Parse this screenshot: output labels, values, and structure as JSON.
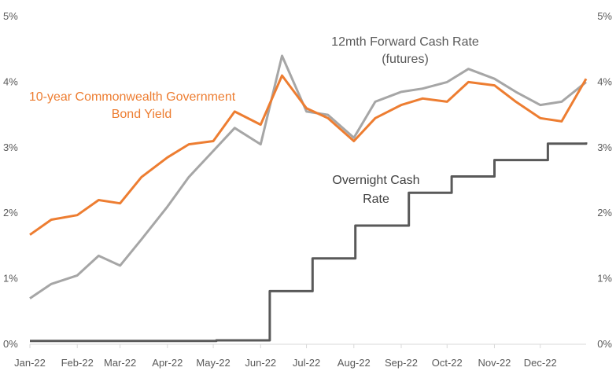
{
  "chart_data": {
    "type": "line",
    "title": "",
    "xlabel": "",
    "ylabel": "",
    "ylim": [
      0,
      5
    ],
    "y_ticks": [
      "0%",
      "1%",
      "2%",
      "3%",
      "4%",
      "5%"
    ],
    "x_tick_labels": [
      "Jan-22",
      "Feb-22",
      "Mar-22",
      "Apr-22",
      "May-22",
      "Jun-22",
      "Jul-22",
      "Aug-22",
      "Sep-22",
      "Oct-22",
      "Nov-22",
      "Dec-22"
    ],
    "grid": false,
    "annotations": {
      "bond": [
        "10-year Commonwealth Government",
        "Bond Yield"
      ],
      "futures": [
        "12mth Forward Cash Rate",
        "(futures)"
      ],
      "cash": [
        "Overnight Cash",
        "Rate"
      ]
    },
    "colors": {
      "bond": "#ED7D31",
      "futures": "#A6A6A6",
      "cash": "#595959",
      "axis": "#D9D9D9",
      "text": "#595959"
    },
    "series": [
      {
        "key": "bond",
        "x": [
          "2022-01-01",
          "2022-01-15",
          "2022-02-01",
          "2022-02-15",
          "2022-03-01",
          "2022-03-15",
          "2022-04-01",
          "2022-04-15",
          "2022-05-01",
          "2022-05-15",
          "2022-06-01",
          "2022-06-15",
          "2022-07-01",
          "2022-07-15",
          "2022-08-01",
          "2022-08-15",
          "2022-09-01",
          "2022-09-15",
          "2022-10-01",
          "2022-10-15",
          "2022-11-01",
          "2022-11-15",
          "2022-12-01",
          "2022-12-15",
          "2022-12-31"
        ],
        "values": [
          1.67,
          1.9,
          1.97,
          2.2,
          2.15,
          2.55,
          2.85,
          3.05,
          3.1,
          3.55,
          3.35,
          4.1,
          3.6,
          3.45,
          3.1,
          3.45,
          3.65,
          3.75,
          3.7,
          4.0,
          3.95,
          3.7,
          3.45,
          3.4,
          4.05
        ]
      },
      {
        "key": "futures",
        "x": [
          "2022-01-01",
          "2022-01-15",
          "2022-02-01",
          "2022-02-15",
          "2022-03-01",
          "2022-03-15",
          "2022-04-01",
          "2022-04-15",
          "2022-05-01",
          "2022-05-15",
          "2022-06-01",
          "2022-06-15",
          "2022-07-01",
          "2022-07-15",
          "2022-08-01",
          "2022-08-15",
          "2022-09-01",
          "2022-09-15",
          "2022-10-01",
          "2022-10-15",
          "2022-11-01",
          "2022-11-15",
          "2022-12-01",
          "2022-12-15",
          "2022-12-31"
        ],
        "values": [
          0.7,
          0.92,
          1.05,
          1.35,
          1.2,
          1.6,
          2.1,
          2.55,
          2.95,
          3.3,
          3.05,
          4.4,
          3.55,
          3.5,
          3.15,
          3.7,
          3.85,
          3.9,
          4.0,
          4.2,
          4.05,
          3.85,
          3.65,
          3.7,
          4.0
        ]
      },
      {
        "key": "cash",
        "x": [
          "2022-01-01",
          "2022-05-03",
          "2022-06-07",
          "2022-07-05",
          "2022-08-02",
          "2022-09-06",
          "2022-10-04",
          "2022-11-01",
          "2022-12-06",
          "2022-12-31"
        ],
        "values": [
          0.05,
          0.06,
          0.81,
          1.31,
          1.81,
          2.31,
          2.56,
          2.81,
          3.06,
          3.08
        ],
        "step": true
      }
    ]
  }
}
